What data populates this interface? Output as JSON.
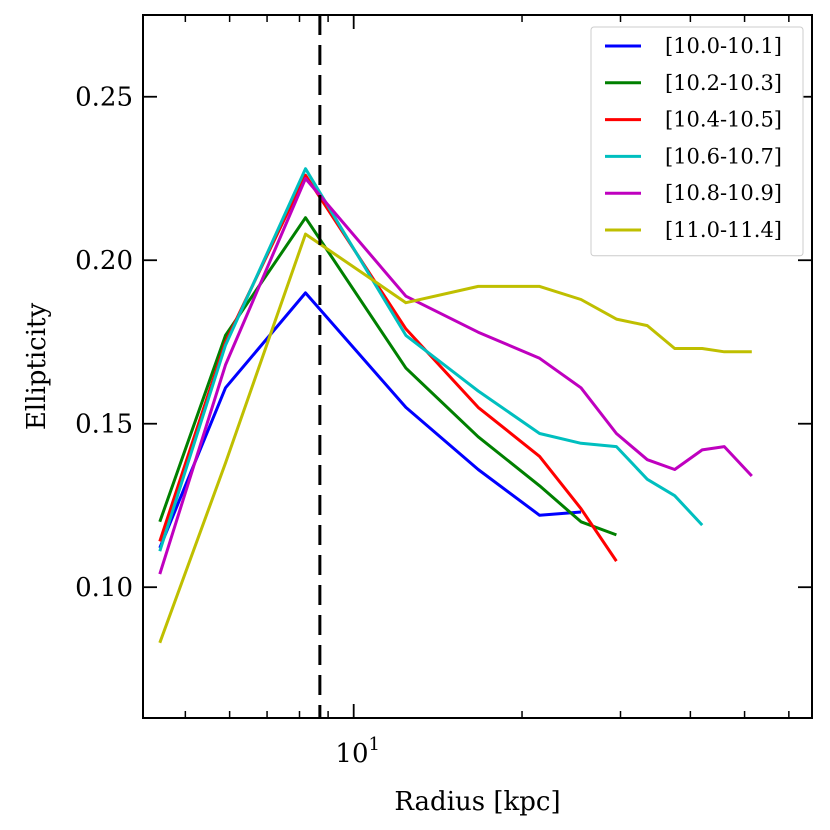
{
  "chart_data": {
    "type": "line",
    "title": "",
    "xlabel": "Radius [kpc]",
    "ylabel": "Ellipticity",
    "xscale": "log",
    "xlim": [
      4.2,
      66
    ],
    "ylim": [
      0.06,
      0.275
    ],
    "yticks": [
      0.1,
      0.15,
      0.2,
      0.25
    ],
    "ytick_labels": [
      "0.10",
      "0.15",
      "0.20",
      "0.25"
    ],
    "xtick_major": [
      10
    ],
    "xtick_label_base": "10",
    "xtick_label_exp": "1",
    "xtick_minor": [
      5,
      6,
      7,
      8,
      9,
      20,
      30,
      40,
      50,
      60
    ],
    "vline": {
      "x": 8.7,
      "style": "dashed",
      "color": "#000000"
    },
    "legend_position": "top-right",
    "series": [
      {
        "name": "[10.0-10.1]",
        "color": "#0000ff",
        "x": [
          4.5,
          5.9,
          8.2,
          12.4,
          16.7,
          21.5,
          25.5
        ],
        "y": [
          0.112,
          0.161,
          0.19,
          0.155,
          0.136,
          0.122,
          0.123
        ]
      },
      {
        "name": "[10.2-10.3]",
        "color": "#008000",
        "x": [
          4.5,
          5.9,
          8.2,
          12.4,
          16.7,
          21.5,
          25.5,
          29.5
        ],
        "y": [
          0.12,
          0.177,
          0.213,
          0.167,
          0.146,
          0.131,
          0.12,
          0.116
        ]
      },
      {
        "name": "[10.4-10.5]",
        "color": "#ff0000",
        "x": [
          4.5,
          5.9,
          8.2,
          12.4,
          16.7,
          21.5,
          25.5,
          29.5
        ],
        "y": [
          0.114,
          0.175,
          0.226,
          0.179,
          0.155,
          0.14,
          0.124,
          0.108
        ]
      },
      {
        "name": "[10.6-10.7]",
        "color": "#00bfbf",
        "x": [
          4.5,
          5.9,
          8.2,
          12.4,
          16.7,
          21.5,
          25.5,
          29.5,
          33.5,
          37.5,
          42.0
        ],
        "y": [
          0.111,
          0.174,
          0.228,
          0.177,
          0.16,
          0.147,
          0.144,
          0.143,
          0.133,
          0.128,
          0.119
        ]
      },
      {
        "name": "[10.8-10.9]",
        "color": "#bf00bf",
        "x": [
          4.5,
          5.9,
          8.2,
          12.4,
          16.7,
          21.5,
          25.5,
          29.5,
          33.5,
          37.5,
          42.0,
          46.0,
          51.5
        ],
        "y": [
          0.104,
          0.168,
          0.225,
          0.189,
          0.178,
          0.17,
          0.161,
          0.147,
          0.139,
          0.136,
          0.142,
          0.143,
          0.134
        ]
      },
      {
        "name": "[11.0-11.4]",
        "color": "#bfbf00",
        "x": [
          4.5,
          5.9,
          8.2,
          12.4,
          16.7,
          21.5,
          25.5,
          29.5,
          33.5,
          37.5,
          42.0,
          46.0,
          51.5
        ],
        "y": [
          0.083,
          0.138,
          0.208,
          0.187,
          0.192,
          0.192,
          0.188,
          0.182,
          0.18,
          0.173,
          0.173,
          0.172,
          0.172
        ]
      }
    ]
  }
}
